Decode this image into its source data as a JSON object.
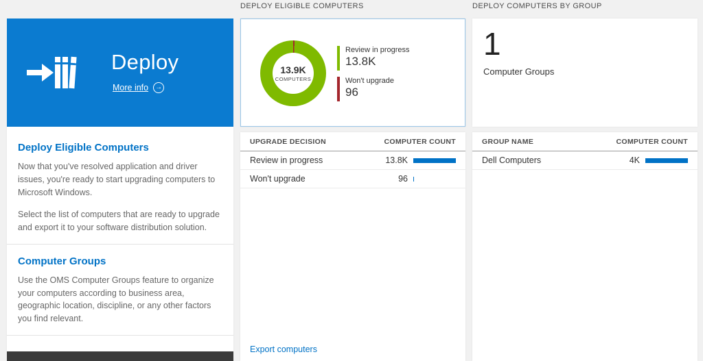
{
  "colors": {
    "tile_blue": "#0b7bd0",
    "accent_blue": "#0072c6",
    "bar_blue": "#0072c6",
    "green": "#7fba00",
    "red": "#a4262c"
  },
  "left_panel": {
    "tile": {
      "title": "Deploy",
      "more_info_label": "More info"
    },
    "sections": [
      {
        "heading": "Deploy Eligible Computers",
        "paragraphs": [
          "Now that you've resolved application and driver issues, you're ready to start upgrading computers to Microsoft Windows.",
          "Select the list of computers that are ready to upgrade and export it to your software distribution solution."
        ]
      },
      {
        "heading": "Computer Groups",
        "paragraphs": [
          "Use the OMS Computer Groups feature to organize your computers according to business area, geographic location, discipline, or any other factors you find relevant."
        ]
      }
    ]
  },
  "eligible_panel": {
    "header": "DEPLOY ELIGIBLE COMPUTERS",
    "donut": {
      "center_value": "13.9K",
      "center_label": "COMPUTERS",
      "segments": [
        {
          "name": "Won't upgrade",
          "value": 96,
          "pct": 0.7,
          "color": "#a4262c"
        },
        {
          "name": "Review in progress",
          "value": 13800,
          "pct": 99.3,
          "color": "#7fba00"
        }
      ],
      "legend": [
        {
          "label": "Review in progress",
          "value": "13.8K",
          "color": "#7fba00"
        },
        {
          "label": "Won't upgrade",
          "value": "96",
          "color": "#a4262c"
        }
      ]
    },
    "table": {
      "col1": "UPGRADE DECISION",
      "col2": "COMPUTER COUNT",
      "rows": [
        {
          "label": "Review in progress",
          "value": "13.8K",
          "bar_pct": 100
        },
        {
          "label": "Won't upgrade",
          "value": "96",
          "bar_pct": 2
        }
      ]
    },
    "export_link": "Export computers"
  },
  "groups_panel": {
    "header": "DEPLOY COMPUTERS BY GROUP",
    "count_value": "1",
    "count_label": "Computer Groups",
    "table": {
      "col1": "GROUP NAME",
      "col2": "COMPUTER COUNT",
      "rows": [
        {
          "label": "Dell Computers",
          "value": "4K",
          "bar_pct": 100
        }
      ]
    }
  }
}
